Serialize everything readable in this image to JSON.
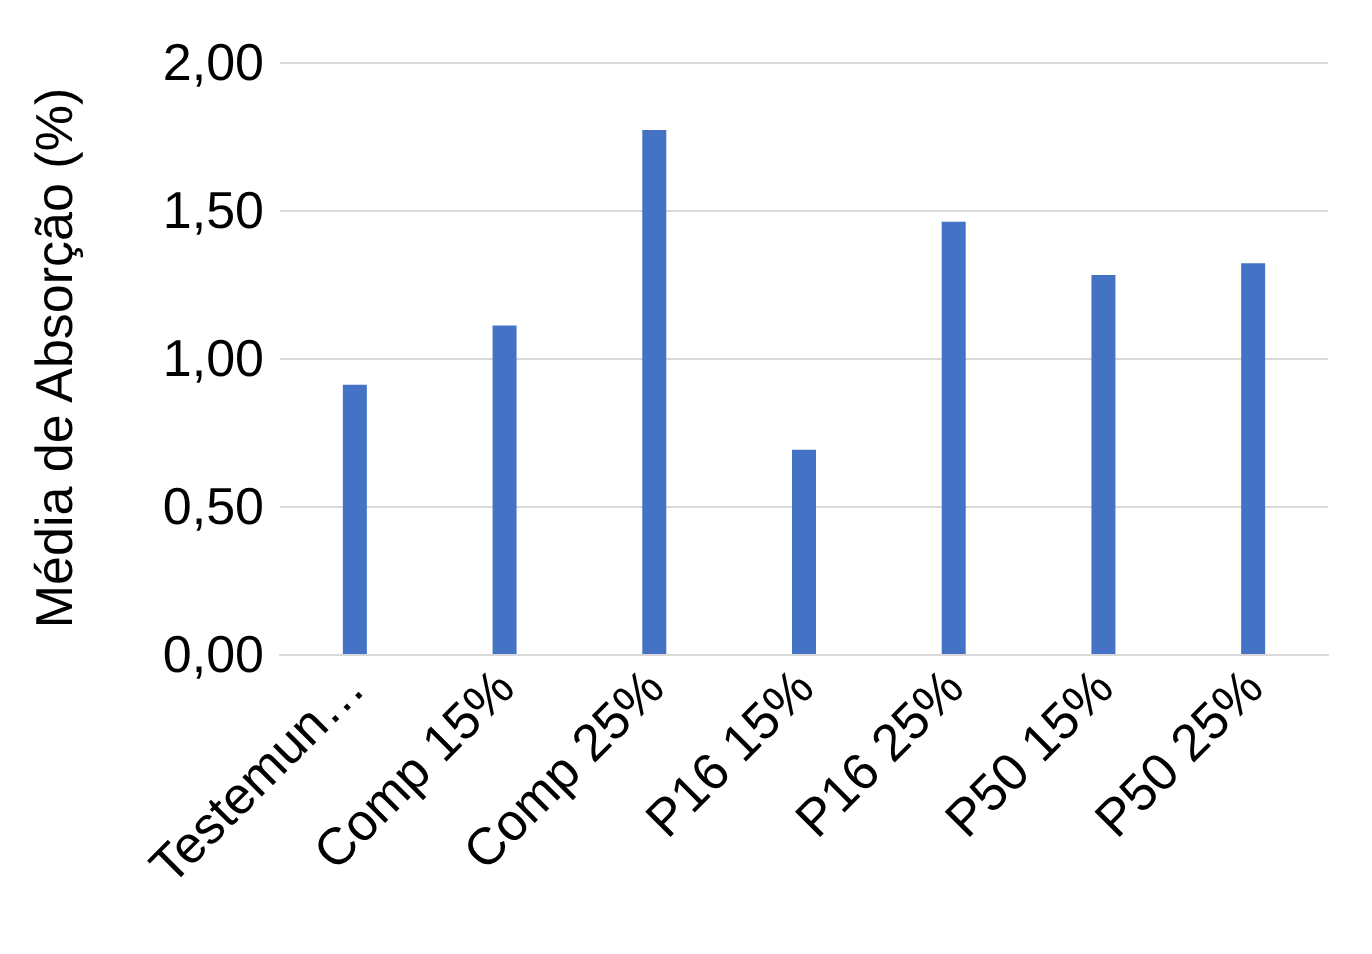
{
  "chart_data": {
    "type": "bar",
    "ylabel": "Média de Absorção (%)",
    "categories": [
      "Testemun…",
      "Comp 15%",
      "Comp 25%",
      "P16 15%",
      "P16 25%",
      "P50 15%",
      "P50 25%"
    ],
    "values": [
      0.91,
      1.11,
      1.77,
      0.69,
      1.46,
      1.28,
      1.32
    ],
    "color": "#4472c4",
    "ylim": [
      0,
      2
    ],
    "yticks": [
      {
        "value": 0,
        "label": "0,00"
      },
      {
        "value": 0.5,
        "label": "0,50"
      },
      {
        "value": 1,
        "label": "1,00"
      },
      {
        "value": 1.5,
        "label": "1,50"
      },
      {
        "value": 2,
        "label": "2,00"
      }
    ],
    "grid": "y"
  }
}
